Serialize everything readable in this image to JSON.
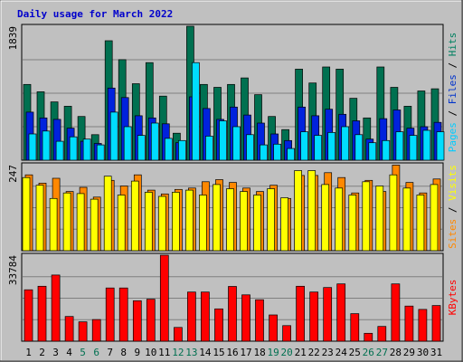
{
  "chart_data": {
    "type": "bar",
    "title": "Daily usage for March 2022",
    "title_color": "#0000cc",
    "categories": [
      "1",
      "2",
      "3",
      "4",
      "5",
      "6",
      "7",
      "8",
      "9",
      "10",
      "11",
      "12",
      "13",
      "14",
      "15",
      "16",
      "17",
      "18",
      "19",
      "20",
      "21",
      "22",
      "23",
      "24",
      "25",
      "26",
      "27",
      "28",
      "29",
      "30",
      "31"
    ],
    "weekend_days": [
      "5",
      "6",
      "12",
      "13",
      "19",
      "20",
      "26",
      "27"
    ],
    "weekend_color": "#007050",
    "weekday_color": "#000000",
    "grid": true,
    "panels": [
      {
        "id": "top",
        "ymax_label": "1839",
        "ymax": 1839,
        "axis_label": {
          "parts": [
            {
              "text": "Pages",
              "color": "#00ccff"
            },
            {
              "text": " / ",
              "color": "#000000"
            },
            {
              "text": "Files",
              "color": "#0033cc"
            },
            {
              "text": " / ",
              "color": "#000000"
            },
            {
              "text": "Hits",
              "color": "#008060"
            }
          ]
        },
        "series": [
          {
            "name": "Hits",
            "color": "#007050",
            "values": [
              1040,
              940,
              800,
              740,
              600,
              350,
              1640,
              1380,
              1050,
              1340,
              880,
              370,
              1839,
              1040,
              1000,
              1040,
              1130,
              900,
              600,
              420,
              1250,
              1060,
              1280,
              1250,
              850,
              580,
              1280,
              1000,
              740,
              950,
              980
            ]
          },
          {
            "name": "Files",
            "color": "#0022dd",
            "values": [
              660,
              580,
              560,
              440,
              260,
              230,
              990,
              860,
              610,
              580,
              500,
              240,
              870,
              710,
              560,
              730,
              620,
              510,
              360,
              270,
              730,
              610,
              700,
              630,
              540,
              290,
              570,
              690,
              440,
              460,
              520
            ]
          },
          {
            "name": "Pages",
            "color": "#00ddff",
            "values": [
              360,
              400,
              260,
              320,
              290,
              210,
              660,
              460,
              340,
              510,
              300,
              270,
              1340,
              330,
              540,
              460,
              350,
              210,
              220,
              160,
              390,
              340,
              380,
              460,
              350,
              240,
              270,
              390,
              340,
              410,
              390
            ]
          }
        ]
      },
      {
        "id": "mid",
        "ymax_label": "247",
        "ymax": 247,
        "axis_label": {
          "parts": [
            {
              "text": "Sites",
              "color": "#ff8800"
            },
            {
              "text": " / ",
              "color": "#000000"
            },
            {
              "text": "Visits",
              "color": "#ffff00"
            }
          ]
        },
        "series": [
          {
            "name": "Sites",
            "color": "#ff8800",
            "values": [
              218,
              194,
              208,
              170,
              182,
              154,
              202,
              186,
              218,
              174,
              163,
              176,
              180,
              198,
              204,
              196,
              180,
              170,
              188,
              150,
              216,
              216,
              224,
              210,
              166,
              202,
              170,
              246,
              196,
              166,
              206
            ]
          },
          {
            "name": "Visits",
            "color": "#ffff00",
            "values": [
              210,
              188,
              150,
              166,
              164,
              148,
              214,
              160,
              200,
              168,
              156,
              168,
              174,
              160,
              190,
              178,
              170,
              160,
              178,
              152,
              230,
              230,
              190,
              180,
              160,
              198,
              186,
              218,
              180,
              160,
              190
            ]
          }
        ]
      },
      {
        "id": "bot",
        "ymax_label": "33784",
        "ymax": 33784,
        "axis_label": {
          "parts": [
            {
              "text": "KBytes",
              "color": "#ff0000"
            }
          ]
        },
        "series": [
          {
            "name": "KBytes",
            "color": "#ff0000",
            "values": [
              20200,
              21600,
              26000,
              9700,
              7600,
              8500,
              20900,
              20900,
              15900,
              16500,
              33784,
              5400,
              19300,
              19300,
              12700,
              21500,
              18200,
              16300,
              10300,
              6100,
              21600,
              19300,
              21100,
              22500,
              10800,
              3100,
              5800,
              22500,
              13800,
              12500,
              14000
            ]
          }
        ]
      }
    ]
  }
}
